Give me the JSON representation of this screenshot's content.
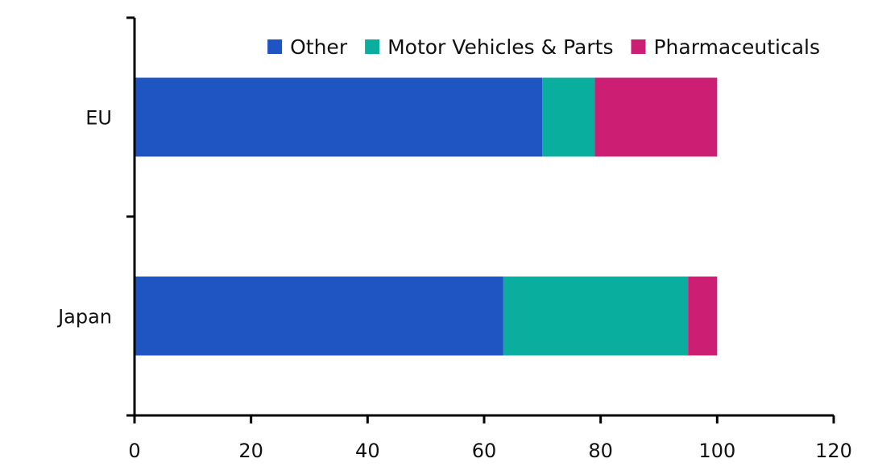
{
  "chart_data": {
    "type": "bar",
    "orientation": "horizontal",
    "stacked": true,
    "categories": [
      "EU",
      "Japan"
    ],
    "series": [
      {
        "name": "Other",
        "values": [
          70,
          63.3
        ],
        "color": "#1f55c3"
      },
      {
        "name": "Motor Vehicles & Parts",
        "values": [
          9,
          31.7
        ],
        "color": "#0aae9f"
      },
      {
        "name": "Pharmaceuticals",
        "values": [
          21,
          5
        ],
        "color": "#cc1f74"
      }
    ],
    "x_ticks": [
      "0",
      "20",
      "40",
      "60",
      "80",
      "100",
      "120"
    ],
    "xlim": [
      0,
      120
    ],
    "title": "",
    "xlabel": "",
    "ylabel": "",
    "grid": false,
    "legend_position": "top-right"
  }
}
